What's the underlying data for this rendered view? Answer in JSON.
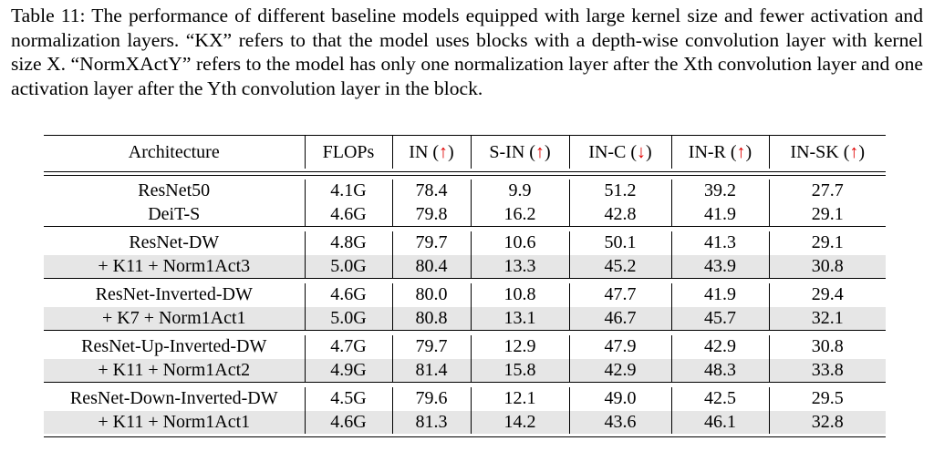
{
  "caption": "Table 11: The performance of different baseline models equipped with large kernel size and fewer activation and normalization layers. “KX” refers to that the model uses blocks with a depth-wise convolution layer with kernel size X. “NormXActY” refers to the model has only one normalization layer after the Xth convolution layer and one activation layer after the Yth convolution layer in the block.",
  "columns": [
    {
      "label": "Architecture",
      "arrow": ""
    },
    {
      "label": "FLOPs",
      "arrow": ""
    },
    {
      "label": "IN (",
      "arrow": "↑",
      "close": ")"
    },
    {
      "label": "S-IN (",
      "arrow": "↑",
      "close": ")"
    },
    {
      "label": "IN-C (",
      "arrow": "↓",
      "close": ")"
    },
    {
      "label": "IN-R (",
      "arrow": "↑",
      "close": ")"
    },
    {
      "label": "IN-SK (",
      "arrow": "↑",
      "close": ")"
    }
  ],
  "groups": [
    {
      "rows": [
        {
          "arch": "ResNet50",
          "flops": "4.1G",
          "in": "78.4",
          "sin": "9.9",
          "inc": "51.2",
          "inr": "39.2",
          "insk": "27.7",
          "shaded": false
        },
        {
          "arch": "DeiT-S",
          "flops": "4.6G",
          "in": "79.8",
          "sin": "16.2",
          "inc": "42.8",
          "inr": "41.9",
          "insk": "29.1",
          "shaded": false
        }
      ]
    },
    {
      "rows": [
        {
          "arch": "ResNet-DW",
          "flops": "4.8G",
          "in": "79.7",
          "sin": "10.6",
          "inc": "50.1",
          "inr": "41.3",
          "insk": "29.1",
          "shaded": false
        },
        {
          "arch": "+ K11 + Norm1Act3",
          "flops": "5.0G",
          "in": "80.4",
          "sin": "13.3",
          "inc": "45.2",
          "inr": "43.9",
          "insk": "30.8",
          "shaded": true
        }
      ]
    },
    {
      "rows": [
        {
          "arch": "ResNet-Inverted-DW",
          "flops": "4.6G",
          "in": "80.0",
          "sin": "10.8",
          "inc": "47.7",
          "inr": "41.9",
          "insk": "29.4",
          "shaded": false
        },
        {
          "arch": "+ K7 + Norm1Act1",
          "flops": "5.0G",
          "in": "80.8",
          "sin": "13.1",
          "inc": "46.7",
          "inr": "45.7",
          "insk": "32.1",
          "shaded": true
        }
      ]
    },
    {
      "rows": [
        {
          "arch": "ResNet-Up-Inverted-DW",
          "flops": "4.7G",
          "in": "79.7",
          "sin": "12.9",
          "inc": "47.9",
          "inr": "42.9",
          "insk": "30.8",
          "shaded": false
        },
        {
          "arch": "+ K11 + Norm1Act2",
          "flops": "4.9G",
          "in": "81.4",
          "sin": "15.8",
          "inc": "42.9",
          "inr": "48.3",
          "insk": "33.8",
          "shaded": true
        }
      ]
    },
    {
      "rows": [
        {
          "arch": "ResNet-Down-Inverted-DW",
          "flops": "4.5G",
          "in": "79.6",
          "sin": "12.1",
          "inc": "49.0",
          "inr": "42.5",
          "insk": "29.5",
          "shaded": false
        },
        {
          "arch": "+ K11 + Norm1Act1",
          "flops": "4.6G",
          "in": "81.3",
          "sin": "14.2",
          "inc": "43.6",
          "inr": "46.1",
          "insk": "32.8",
          "shaded": true
        }
      ]
    }
  ],
  "colors": {
    "arrow": "#e00000",
    "shade": "#e6e6e6"
  }
}
